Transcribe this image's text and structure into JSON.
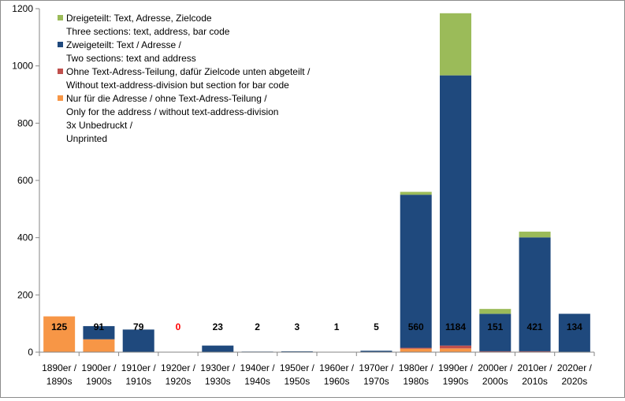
{
  "chart_data": {
    "type": "bar",
    "stacked": true,
    "ylim": [
      0,
      1200
    ],
    "yticks": [
      0,
      200,
      400,
      600,
      800,
      1000,
      1200
    ],
    "grid": false,
    "legend_position": "top-left",
    "categories": [
      [
        "1890er /",
        "1890s"
      ],
      [
        "1900er /",
        "1900s"
      ],
      [
        "1910er /",
        "1910s"
      ],
      [
        "1920er /",
        "1920s"
      ],
      [
        "1930er /",
        "1930s"
      ],
      [
        "1940er /",
        "1940s"
      ],
      [
        "1950er /",
        "1950s"
      ],
      [
        "1960er /",
        "1960s"
      ],
      [
        "1970er /",
        "1970s"
      ],
      [
        "1980er /",
        "1980s"
      ],
      [
        "1990er /",
        "1990s"
      ],
      [
        "2000er /",
        "2000s"
      ],
      [
        "2010er /",
        "2010s"
      ],
      [
        "2020er /",
        "2020s"
      ]
    ],
    "series": [
      {
        "name": [
          "Nur für die Adresse / ohne Text-Adress-Teilung /",
          "Only for the address  / without text-address-division"
        ],
        "color": "#f79646",
        "values": [
          125,
          45,
          0,
          0,
          0,
          0,
          0,
          0,
          0,
          12,
          13,
          0,
          0,
          0
        ]
      },
      {
        "name": [
          "Ohne Text-Adress-Teilung, dafür Zielcode unten abgeteilt /",
          "Without text-address-division but section for bar code"
        ],
        "color": "#c0504d",
        "values": [
          0,
          0,
          0,
          0,
          0,
          0,
          0,
          0,
          0,
          3,
          10,
          3,
          3,
          0
        ]
      },
      {
        "name": [
          "Zweigeteilt: Text / Adresse /",
          "Two sections: text and address"
        ],
        "color": "#1f497d",
        "values": [
          0,
          46,
          79,
          0,
          23,
          2,
          3,
          1,
          5,
          535,
          944,
          131,
          398,
          134
        ]
      },
      {
        "name": [
          "Dreigeteilt: Text, Adresse, Zielcode",
          "Three sections: text, address, bar code"
        ],
        "color": "#9bbb59",
        "values": [
          0,
          0,
          0,
          0,
          0,
          0,
          0,
          0,
          0,
          10,
          217,
          17,
          20,
          0
        ]
      }
    ],
    "legend_note": [
      "3x Unbedruckt /",
      "Unprinted"
    ],
    "totals": [
      "125",
      "91",
      "79",
      "0",
      "23",
      "2",
      "3",
      "1",
      "5",
      "560",
      "1184",
      "151",
      "421",
      "134"
    ],
    "total_colors": [
      "#000000",
      "#000000",
      "#000000",
      "#ff0000",
      "#000000",
      "#000000",
      "#000000",
      "#000000",
      "#000000",
      "#000000",
      "#000000",
      "#000000",
      "#000000",
      "#000000"
    ]
  }
}
